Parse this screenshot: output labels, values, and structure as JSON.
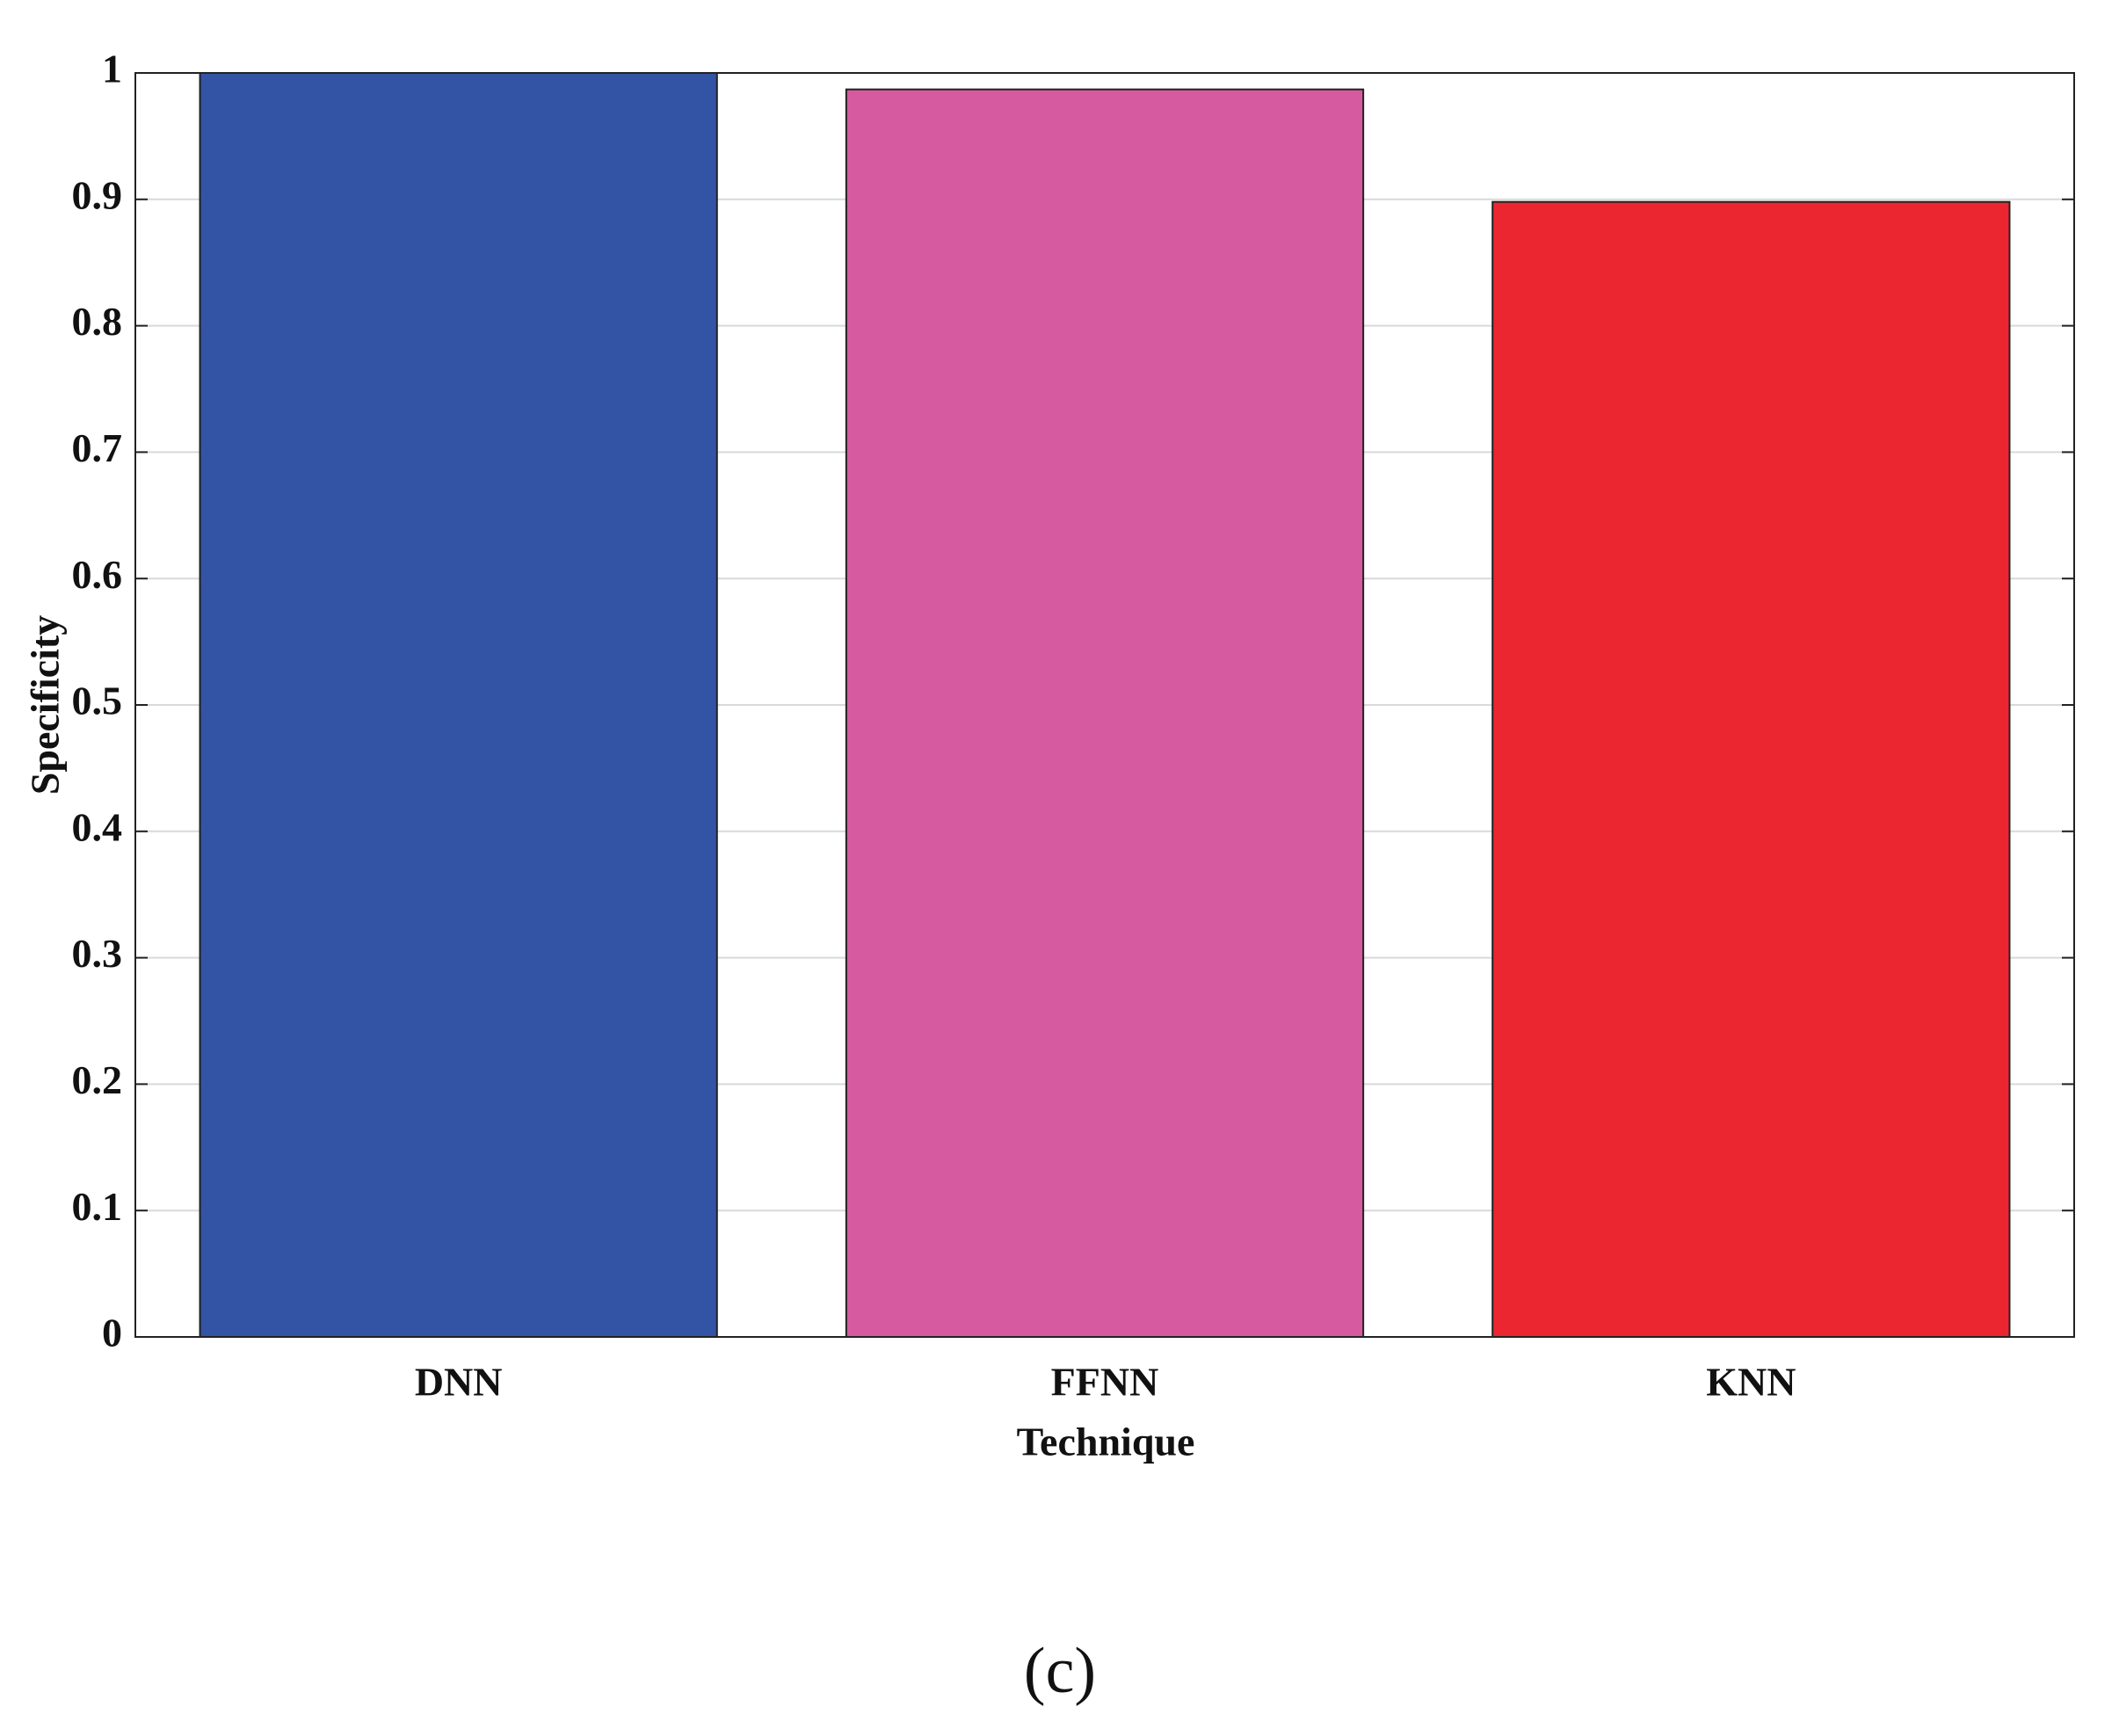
{
  "chart_data": {
    "type": "bar",
    "categories": [
      "DNN",
      "FFNN",
      "KNN"
    ],
    "values": [
      1.0,
      0.987,
      0.898
    ],
    "colors": [
      "#3353a5",
      "#d65a9f",
      "#ec2630"
    ],
    "xlabel": "Technique",
    "ylabel": "Specificity",
    "ylim": [
      0,
      1
    ],
    "yticks": [
      0,
      0.1,
      0.2,
      0.3,
      0.4,
      0.5,
      0.6,
      0.7,
      0.8,
      0.9,
      1
    ],
    "grid": true
  },
  "caption": "(c)"
}
